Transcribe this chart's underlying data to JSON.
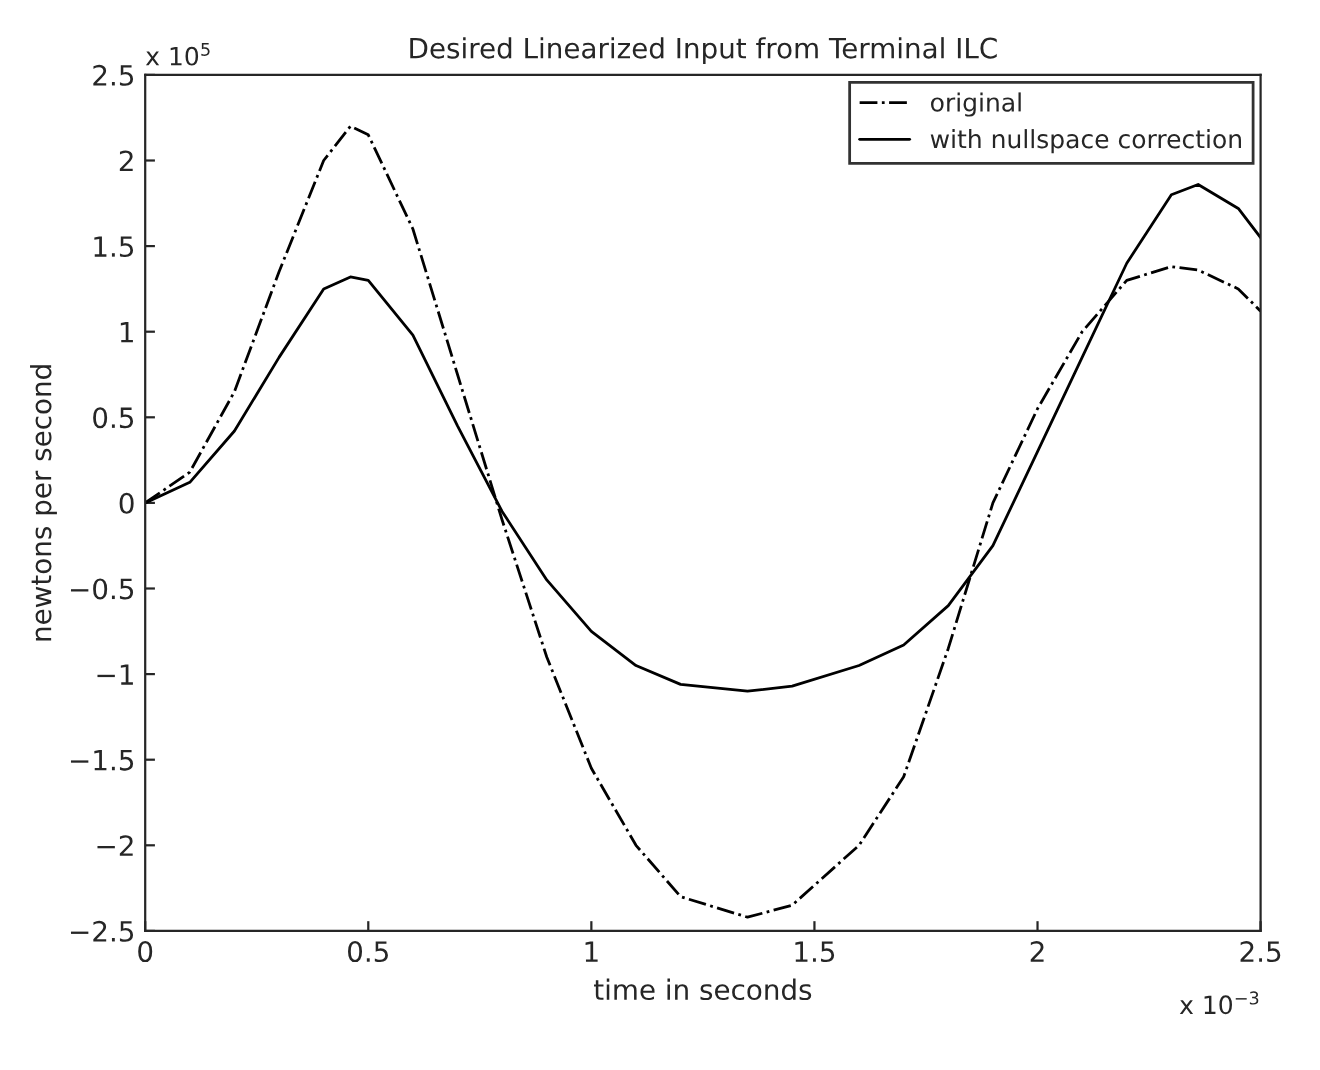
{
  "chart_data": {
    "type": "line",
    "title": "Desired Linearized Input from Terminal ILC",
    "xlabel": "time in seconds",
    "ylabel": "newtons per second",
    "annotations": [
      "x 10$^{5}$",
      "x 10$^{−3}$"
    ],
    "x": [
      0,
      0.1,
      0.2,
      0.3,
      0.4,
      0.46,
      0.5,
      0.6,
      0.7,
      0.8,
      0.9,
      1.0,
      1.1,
      1.2,
      1.35,
      1.45,
      1.6,
      1.7,
      1.8,
      1.9,
      2.0,
      2.1,
      2.2,
      2.3,
      2.36,
      2.45,
      2.5
    ],
    "series": [
      {
        "name": "original",
        "color": "#000000",
        "line_style": "dashed",
        "values": [
          0,
          0.18,
          0.65,
          1.35,
          2.0,
          2.2,
          2.15,
          1.6,
          0.75,
          -0.1,
          -0.9,
          -1.55,
          -2.0,
          -2.3,
          -2.42,
          -2.35,
          -2.0,
          -1.6,
          -0.85,
          0.0,
          0.55,
          1.0,
          1.3,
          1.38,
          1.36,
          1.25,
          1.12
        ]
      },
      {
        "name": "with nullspace correction",
        "color": "#000000",
        "line_style": "solid",
        "values": [
          0,
          0.12,
          0.42,
          0.85,
          1.25,
          1.32,
          1.3,
          0.98,
          0.45,
          -0.05,
          -0.45,
          -0.75,
          -0.95,
          -1.06,
          -1.1,
          -1.07,
          -0.95,
          -0.83,
          -0.6,
          -0.25,
          0.3,
          0.85,
          1.4,
          1.8,
          1.86,
          1.72,
          1.55
        ]
      }
    ],
    "xlim": [
      0,
      2.5
    ],
    "xticks": [
      0,
      0.5,
      1,
      1.5,
      2,
      2.5
    ],
    "ylim": [
      -2.5,
      2.5
    ],
    "yticks": [
      -2.5,
      -2,
      -1.5,
      -1,
      -0.5,
      0,
      0.5,
      1,
      1.5,
      2,
      2.5
    ],
    "grid": false,
    "legend": "top right"
  }
}
